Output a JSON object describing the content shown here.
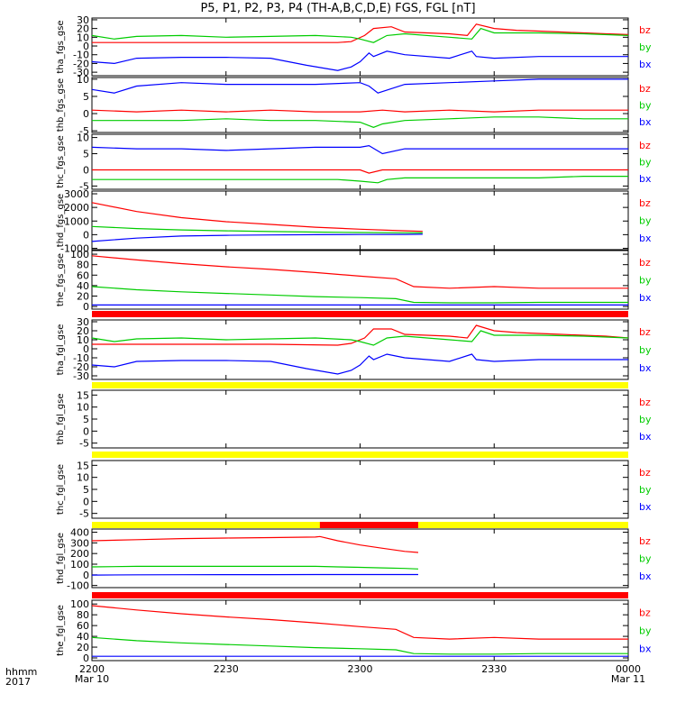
{
  "title": "P5, P1, P2, P3, P4 (TH-A,B,C,D,E) FGS, FGL [nT]",
  "time_axis": {
    "header": [
      "hhmm",
      "2017"
    ],
    "ticks": [
      {
        "t": 0,
        "label": "2200",
        "date": "Mar 10"
      },
      {
        "t": 30,
        "label": "2230",
        "date": ""
      },
      {
        "t": 60,
        "label": "2300",
        "date": ""
      },
      {
        "t": 90,
        "label": "2330",
        "date": ""
      },
      {
        "t": 120,
        "label": "0000",
        "date": "Mar 11"
      }
    ],
    "range_minutes": [
      0,
      120
    ]
  },
  "components": [
    {
      "name": "bz",
      "color": "#ff0000"
    },
    {
      "name": "by",
      "color": "#00cc00"
    },
    {
      "name": "bx",
      "color": "#0000ff"
    }
  ],
  "status_colors": {
    "red": "#ff0000",
    "yellow": "#ffff00",
    "black": "#000000"
  },
  "chart_data": [
    {
      "type": "line",
      "ylabel": "tha_fgs_gse",
      "ylim": [
        -34,
        32
      ],
      "yticks": [
        30,
        20,
        10,
        0,
        -10,
        -20,
        -30
      ],
      "series": [
        {
          "name": "bz",
          "x": [
            0,
            20,
            40,
            55,
            58,
            61,
            63,
            67,
            70,
            75,
            80,
            84,
            86,
            90,
            95,
            100,
            105,
            110,
            115,
            120
          ],
          "y": [
            4,
            4,
            4,
            4,
            5,
            12,
            20,
            22,
            16,
            15,
            14,
            12,
            25,
            20,
            18,
            17,
            16,
            15,
            14,
            13
          ]
        },
        {
          "name": "by",
          "x": [
            0,
            5,
            10,
            20,
            30,
            40,
            50,
            58,
            60,
            63,
            66,
            70,
            80,
            85,
            87,
            90,
            100,
            110,
            120
          ],
          "y": [
            12,
            8,
            11,
            12,
            10,
            11,
            12,
            10,
            8,
            4,
            12,
            14,
            10,
            8,
            20,
            15,
            15,
            14,
            12
          ]
        },
        {
          "name": "bx",
          "x": [
            0,
            5,
            10,
            20,
            30,
            40,
            48,
            55,
            58,
            60,
            62,
            63,
            66,
            70,
            80,
            85,
            86,
            90,
            100,
            110,
            120
          ],
          "y": [
            -18,
            -20,
            -14,
            -13,
            -13,
            -14,
            -22,
            -28,
            -24,
            -18,
            -8,
            -12,
            -6,
            -10,
            -14,
            -6,
            -12,
            -14,
            -12,
            -12,
            -12
          ]
        }
      ]
    },
    {
      "type": "line",
      "ylabel": "thb_fgs_gse",
      "ylim": [
        -5.5,
        10.5
      ],
      "yticks": [
        10,
        5,
        0,
        -5
      ],
      "series": [
        {
          "name": "bz",
          "x": [
            0,
            10,
            20,
            30,
            40,
            50,
            60,
            65,
            70,
            80,
            90,
            100,
            110,
            120
          ],
          "y": [
            1,
            0.5,
            1,
            0.5,
            1,
            0.5,
            0.5,
            1,
            0.5,
            1,
            0.5,
            1,
            1,
            1
          ]
        },
        {
          "name": "by",
          "x": [
            0,
            10,
            20,
            30,
            40,
            50,
            60,
            63,
            65,
            70,
            80,
            90,
            100,
            110,
            120
          ],
          "y": [
            -2,
            -2,
            -2,
            -1.5,
            -2,
            -2,
            -2.5,
            -4,
            -3,
            -2,
            -1.5,
            -1,
            -1,
            -1.5,
            -1.5
          ]
        },
        {
          "name": "bx",
          "x": [
            0,
            5,
            10,
            20,
            30,
            40,
            50,
            60,
            62,
            64,
            70,
            80,
            90,
            100,
            110,
            120
          ],
          "y": [
            7,
            6,
            8,
            9,
            8.5,
            8.5,
            8.5,
            9,
            8,
            6,
            8.5,
            9,
            9.5,
            10,
            10,
            10
          ]
        }
      ]
    },
    {
      "type": "line",
      "ylabel": "thc_fgs_gse",
      "ylim": [
        -6,
        11
      ],
      "yticks": [
        10,
        5,
        0,
        -5
      ],
      "series": [
        {
          "name": "bz",
          "x": [
            0,
            20,
            40,
            60,
            62,
            65,
            70,
            80,
            90,
            100,
            110,
            120
          ],
          "y": [
            0,
            0,
            0,
            0,
            -1,
            0,
            0,
            0,
            0,
            0,
            0,
            0
          ]
        },
        {
          "name": "by",
          "x": [
            0,
            20,
            40,
            55,
            60,
            64,
            66,
            70,
            80,
            90,
            100,
            110,
            120
          ],
          "y": [
            -3,
            -3,
            -3,
            -3,
            -3.5,
            -4,
            -3,
            -2.5,
            -2.5,
            -2.5,
            -2.5,
            -2,
            -2
          ]
        },
        {
          "name": "bx",
          "x": [
            0,
            10,
            20,
            30,
            40,
            50,
            60,
            62,
            65,
            70,
            80,
            90,
            100,
            110,
            120
          ],
          "y": [
            7,
            6.5,
            6.5,
            6,
            6.5,
            7,
            7,
            7.5,
            5,
            6.5,
            6.5,
            6.5,
            6.5,
            6.5,
            6.5
          ]
        }
      ]
    },
    {
      "type": "line",
      "ylabel": "thd_fgs_gse",
      "ylim": [
        -1100,
        3200
      ],
      "yticks": [
        3000,
        2000,
        1000,
        0,
        -1000
      ],
      "series": [
        {
          "name": "bz",
          "x": [
            0,
            10,
            20,
            30,
            40,
            50,
            60,
            70,
            74
          ],
          "y": [
            2350,
            1700,
            1250,
            950,
            750,
            550,
            400,
            280,
            240
          ]
        },
        {
          "name": "by",
          "x": [
            0,
            10,
            20,
            30,
            40,
            50,
            60,
            70,
            74
          ],
          "y": [
            600,
            450,
            350,
            280,
            230,
            190,
            160,
            140,
            130
          ]
        },
        {
          "name": "bx",
          "x": [
            0,
            10,
            20,
            30,
            40,
            50,
            60,
            70,
            74
          ],
          "y": [
            -500,
            -250,
            -100,
            -50,
            -20,
            0,
            10,
            20,
            30
          ]
        }
      ]
    },
    {
      "type": "line",
      "ylabel": "the_fgs_gse",
      "ylim": [
        -5,
        107
      ],
      "yticks": [
        100,
        80,
        60,
        40,
        20,
        0
      ],
      "series": [
        {
          "name": "bz",
          "x": [
            0,
            10,
            20,
            30,
            40,
            50,
            60,
            68,
            72,
            80,
            90,
            100,
            110,
            120
          ],
          "y": [
            97,
            89,
            82,
            76,
            71,
            65,
            58,
            53,
            38,
            35,
            38,
            35,
            35,
            35
          ]
        },
        {
          "name": "by",
          "x": [
            0,
            10,
            20,
            30,
            40,
            50,
            60,
            68,
            72,
            80,
            90,
            100,
            110,
            120
          ],
          "y": [
            38,
            32,
            28,
            25,
            22,
            19,
            17,
            15,
            8,
            7,
            7,
            8,
            8,
            8
          ]
        },
        {
          "name": "bx",
          "x": [
            0,
            20,
            40,
            60,
            70,
            80,
            100,
            120
          ],
          "y": [
            3,
            3,
            3,
            3,
            3,
            3,
            3,
            3
          ]
        }
      ]
    },
    {
      "type": "line",
      "ylabel": "tha_fgl_gse",
      "ylim": [
        -34,
        32
      ],
      "yticks": [
        30,
        20,
        10,
        0,
        -10,
        -20,
        -30
      ],
      "series": [
        {
          "name": "bz",
          "x": [
            0,
            20,
            40,
            55,
            58,
            61,
            63,
            67,
            70,
            75,
            80,
            84,
            86,
            90,
            95,
            100,
            105,
            110,
            115,
            120
          ],
          "y": [
            5,
            5,
            5,
            4,
            6,
            12,
            22,
            22,
            16,
            15,
            14,
            12,
            26,
            20,
            18,
            17,
            16,
            15,
            14,
            12
          ]
        },
        {
          "name": "by",
          "x": [
            0,
            5,
            10,
            20,
            30,
            40,
            50,
            58,
            60,
            63,
            66,
            70,
            80,
            85,
            87,
            90,
            100,
            110,
            120
          ],
          "y": [
            12,
            8,
            11,
            12,
            10,
            11,
            12,
            10,
            8,
            4,
            12,
            14,
            10,
            8,
            20,
            15,
            15,
            14,
            12
          ]
        },
        {
          "name": "bx",
          "x": [
            0,
            5,
            10,
            20,
            30,
            40,
            48,
            55,
            58,
            60,
            62,
            63,
            66,
            70,
            80,
            85,
            86,
            90,
            100,
            110,
            120
          ],
          "y": [
            -18,
            -20,
            -14,
            -13,
            -13,
            -14,
            -22,
            -28,
            -24,
            -18,
            -8,
            -12,
            -6,
            -10,
            -14,
            -6,
            -12,
            -14,
            -12,
            -12,
            -12
          ]
        }
      ]
    },
    {
      "type": "line",
      "ylabel": "thb_fgl_gse",
      "ylim": [
        -7,
        17
      ],
      "yticks": [
        15,
        10,
        5,
        0,
        -5
      ],
      "series": []
    },
    {
      "type": "line",
      "ylabel": "thc_fgl_gse",
      "ylim": [
        -7,
        17
      ],
      "yticks": [
        15,
        10,
        5,
        0,
        -5
      ],
      "series": []
    },
    {
      "type": "line",
      "ylabel": "thd_fgl_gse",
      "ylim": [
        -120,
        430
      ],
      "yticks": [
        400,
        300,
        200,
        100,
        0,
        -100
      ],
      "series": [
        {
          "name": "bz",
          "x": [
            0,
            10,
            20,
            30,
            40,
            50,
            51,
            55,
            60,
            65,
            70,
            73
          ],
          "y": [
            320,
            330,
            340,
            345,
            350,
            355,
            360,
            320,
            280,
            250,
            220,
            210
          ]
        },
        {
          "name": "by",
          "x": [
            0,
            10,
            20,
            30,
            40,
            50,
            55,
            60,
            65,
            70,
            73
          ],
          "y": [
            75,
            80,
            80,
            80,
            80,
            80,
            75,
            70,
            65,
            60,
            55
          ]
        },
        {
          "name": "bx",
          "x": [
            0,
            10,
            20,
            30,
            40,
            50,
            60,
            70,
            73
          ],
          "y": [
            -2,
            0,
            1,
            2,
            2,
            3,
            3,
            3,
            3
          ]
        }
      ]
    },
    {
      "type": "line",
      "ylabel": "the_fgl_gse",
      "ylim": [
        -5,
        107
      ],
      "yticks": [
        100,
        80,
        60,
        40,
        20,
        0
      ],
      "series": [
        {
          "name": "bz",
          "x": [
            0,
            10,
            20,
            30,
            40,
            50,
            60,
            68,
            72,
            80,
            90,
            100,
            110,
            120
          ],
          "y": [
            97,
            89,
            82,
            76,
            71,
            65,
            58,
            53,
            38,
            35,
            38,
            35,
            35,
            35
          ]
        },
        {
          "name": "by",
          "x": [
            0,
            10,
            20,
            30,
            40,
            50,
            60,
            68,
            72,
            80,
            90,
            100,
            110,
            120
          ],
          "y": [
            38,
            32,
            28,
            25,
            22,
            19,
            17,
            15,
            8,
            7,
            7,
            8,
            8,
            8
          ]
        },
        {
          "name": "bx",
          "x": [
            0,
            20,
            40,
            60,
            70,
            80,
            100,
            120
          ],
          "y": [
            3,
            3,
            3,
            3,
            3,
            3,
            3,
            3
          ]
        }
      ]
    }
  ],
  "status_bars": [
    {
      "after_panel": 4,
      "color": "red"
    },
    {
      "after_panel": 5,
      "color": "yellow"
    },
    {
      "after_panel": 6,
      "color": "yellow"
    },
    {
      "after_panel": 7,
      "color": "yellow",
      "segments": [
        {
          "t0": 51,
          "t1": 73,
          "color": "red"
        }
      ]
    },
    {
      "after_panel": 8,
      "color": "red"
    }
  ]
}
